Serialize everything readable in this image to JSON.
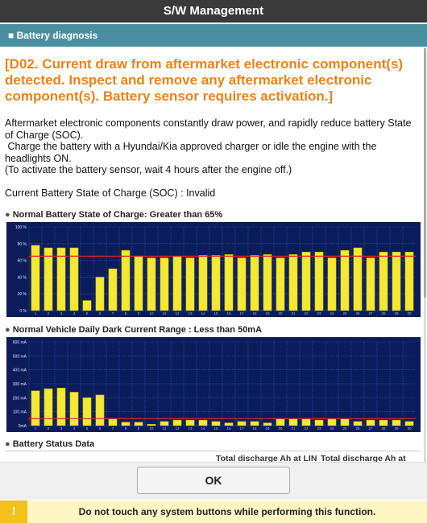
{
  "header": {
    "title": "S/W Management"
  },
  "section": {
    "title": "Battery diagnosis"
  },
  "alert": {
    "lines": [
      "[D02. Current draw from aftermarket electronic component(s)",
      "detected. Inspect and remove any aftermarket electronic",
      "component(s). Battery sensor requires activation.]"
    ]
  },
  "body": {
    "lines": [
      "Aftermarket electronic components constantly draw power, and rapidly reduce battery State of Charge (SOC).",
      " Charge the battery with a Hyundai/Kia approved charger or idle the engine with the headlights ON.",
      "(To activate the battery sensor, wait 4 hours after the engine off.)"
    ],
    "soc": "Current Battery State of Charge (SOC) : Invalid"
  },
  "chart_data": [
    {
      "type": "bar",
      "title": "Normal Battery State of Charge: Greater than 65%",
      "categories": [
        "1",
        "2",
        "3",
        "4",
        "5",
        "6",
        "7",
        "8",
        "9",
        "10",
        "11",
        "12",
        "13",
        "14",
        "15",
        "16",
        "17",
        "18",
        "19",
        "20",
        "21",
        "22",
        "23",
        "24",
        "25",
        "26",
        "27",
        "28",
        "29",
        "30"
      ],
      "values": [
        78,
        75,
        75,
        75,
        12,
        40,
        50,
        72,
        65,
        63,
        63,
        65,
        63,
        66,
        66,
        67,
        63,
        66,
        67,
        63,
        67,
        70,
        70,
        63,
        72,
        75,
        63,
        70,
        70,
        70
      ],
      "color": "#f3e834",
      "reference_line": {
        "value": 65,
        "color": "#e8202a"
      },
      "ylim": [
        0,
        100
      ],
      "yticks": [
        {
          "value": 0,
          "label": "0 %"
        },
        {
          "value": 20,
          "label": "20 %"
        },
        {
          "value": 40,
          "label": "40 %"
        },
        {
          "value": 60,
          "label": "60 %"
        },
        {
          "value": 80,
          "label": "80 %"
        },
        {
          "value": 100,
          "label": "100 %"
        }
      ],
      "grid": true
    },
    {
      "type": "bar",
      "title": "Normal Vehicle Daily Dark Current Range : Less than 50mA",
      "categories": [
        "1",
        "2",
        "3",
        "4",
        "5",
        "6",
        "7",
        "8",
        "9",
        "10",
        "11",
        "12",
        "13",
        "14",
        "15",
        "16",
        "17",
        "18",
        "19",
        "20",
        "21",
        "22",
        "23",
        "24",
        "25",
        "26",
        "27",
        "28",
        "29",
        "30"
      ],
      "values": [
        250,
        265,
        270,
        240,
        200,
        220,
        50,
        25,
        25,
        10,
        30,
        40,
        40,
        40,
        30,
        20,
        30,
        30,
        20,
        50,
        50,
        50,
        40,
        50,
        50,
        30,
        40,
        40,
        40,
        30
      ],
      "color": "#f3e834",
      "reference_line": {
        "value": 50,
        "color": "#e8202a"
      },
      "ylim": [
        0,
        600
      ],
      "yticks": [
        {
          "value": 0,
          "label": "0mA"
        },
        {
          "value": 100,
          "label": "100 mA"
        },
        {
          "value": 200,
          "label": "200 mA"
        },
        {
          "value": 300,
          "label": "300 mA"
        },
        {
          "value": 400,
          "label": "400 mA"
        },
        {
          "value": 500,
          "label": "500 mA"
        },
        {
          "value": 600,
          "label": "600 mA"
        }
      ],
      "grid": true
    }
  ],
  "status": {
    "title": "Battery Status Data",
    "columns": [
      "Total discharge Ah at LIN",
      "Total discharge Ah at LIN"
    ]
  },
  "button": {
    "label": "OK"
  },
  "warning": {
    "icon": "!",
    "text": "Do not touch any system buttons while performing this function."
  }
}
